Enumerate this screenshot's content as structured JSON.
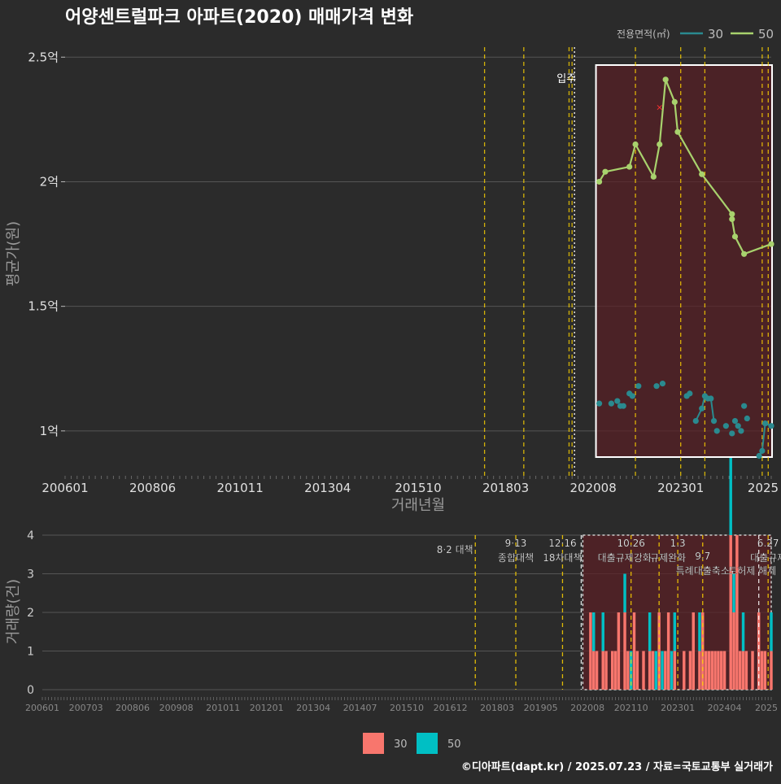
{
  "title": "어양센트럴파크 아파트(2020) 매매가격 변화",
  "footer": "©디아파트(dapt.kr) / 2025.07.23 / 자료=국토교통부 실거래가",
  "colors": {
    "background": "#2b2b2b",
    "s30": "#2a8a8f",
    "s50": "#a8d26d",
    "bar30": "#f8766d",
    "bar50": "#00bfc4",
    "policy": "#ffd400",
    "highlight": "#5a2025"
  },
  "chart_data": [
    {
      "type": "line",
      "xlabel": "거래년월",
      "ylabel": "평균가(원)",
      "x_ticks": [
        "200601",
        "200806",
        "201011",
        "201304",
        "201510",
        "201803",
        "202008",
        "202301",
        "2025"
      ],
      "y_ticks": [
        "1억",
        "1.5억",
        "2억",
        "2.5억"
      ],
      "y_tick_values": [
        100000000,
        150000000,
        200000000,
        250000000
      ],
      "ylim": [
        82000000,
        254000000
      ],
      "xlim": [
        "2006-01",
        "2025-07"
      ],
      "legend_title": "전용면적(㎡)",
      "legend_position": "top-right",
      "annotation": "입주",
      "highlight_range": [
        "2020-10",
        "2025-07"
      ],
      "policy_lines": [
        "2017-08",
        "2018-09",
        "2019-12",
        "2020-01",
        "2021-10",
        "2023-01",
        "2023-09",
        "2025-04",
        "2025-06"
      ],
      "series": [
        {
          "name": "30",
          "points": [
            [
              "2020-10",
              111000000
            ],
            [
              "2021-02",
              111000000
            ],
            [
              "2021-04",
              112000000
            ],
            [
              "2021-05",
              110000000
            ],
            [
              "2021-06",
              110000000
            ],
            [
              "2021-08",
              115000000
            ],
            [
              "2021-09",
              114000000
            ],
            [
              "2021-11",
              118000000
            ],
            [
              "2022-05",
              118000000
            ],
            [
              "2022-07",
              119000000
            ],
            [
              "2023-03",
              114000000
            ],
            [
              "2023-04",
              115000000
            ],
            [
              "2023-06",
              104000000
            ],
            [
              "2023-08",
              109000000
            ],
            [
              "2023-09",
              114000000
            ],
            [
              "2023-10",
              113000000
            ],
            [
              "2023-11",
              113000000
            ],
            [
              "2023-12",
              104000000
            ],
            [
              "2024-01",
              100000000
            ],
            [
              "2024-04",
              102000000
            ],
            [
              "2024-06",
              99000000
            ],
            [
              "2024-07",
              104000000
            ],
            [
              "2024-08",
              102000000
            ],
            [
              "2024-09",
              100000000
            ],
            [
              "2024-10",
              110000000
            ],
            [
              "2024-11",
              105000000
            ],
            [
              "2025-03",
              90000000
            ],
            [
              "2025-04",
              92000000
            ],
            [
              "2025-05",
              103000000
            ],
            [
              "2025-07",
              102000000
            ]
          ]
        },
        {
          "name": "50",
          "points": [
            [
              "2020-10",
              200000000
            ],
            [
              "2020-12",
              204000000
            ],
            [
              "2021-08",
              206000000
            ],
            [
              "2021-10",
              215000000
            ],
            [
              "2022-04",
              202000000
            ],
            [
              "2022-06",
              215000000
            ],
            [
              "2022-08",
              241000000
            ],
            [
              "2022-11",
              232000000
            ],
            [
              "2022-12",
              220000000
            ],
            [
              "2023-08",
              203000000
            ],
            [
              "2024-06",
              187000000
            ],
            [
              "2024-06",
              185000000
            ],
            [
              "2024-07",
              178000000
            ],
            [
              "2024-10",
              171000000
            ],
            [
              "2025-07",
              175000000
            ]
          ],
          "outlier": [
            "2022-06",
            230000000
          ]
        }
      ]
    },
    {
      "type": "bar",
      "xlabel": "",
      "ylabel": "거래량(건)",
      "x_ticks": [
        "200601",
        "200703",
        "200806",
        "200908",
        "201011",
        "201201",
        "201304",
        "201407",
        "201510",
        "201612",
        "201803",
        "201905",
        "202008",
        "202110",
        "202301",
        "202404",
        "2025"
      ],
      "y_ticks": [
        "0",
        "1",
        "2",
        "3",
        "4"
      ],
      "ylim": [
        0,
        4
      ],
      "legend_position": "bottom",
      "policies": [
        {
          "date": "2017-08",
          "label": "8·2 대책"
        },
        {
          "date": "2018-09",
          "label": "9·13\n종합대책"
        },
        {
          "date": "2019-12",
          "label": "12·16\n18차대책"
        },
        {
          "date": "2020-06",
          "label": ""
        },
        {
          "date": "2021-10",
          "label": "10.26\n대출규제강화"
        },
        {
          "date": "2022-07",
          "label": ""
        },
        {
          "date": "2023-01",
          "label": "1.3\n규제완화"
        },
        {
          "date": "2023-09",
          "label": "9.7\n특례대출축소"
        },
        {
          "date": "2025-03",
          "label": "토허제 해제"
        },
        {
          "date": "2025-06",
          "label": "6.27\n대출규제"
        }
      ],
      "series": [
        {
          "name": "30",
          "points": [
            [
              "2020-09",
              2
            ],
            [
              "2020-10",
              1
            ],
            [
              "2020-11",
              1
            ],
            [
              "2021-01",
              1
            ],
            [
              "2021-02",
              1
            ],
            [
              "2021-04",
              1
            ],
            [
              "2021-05",
              1
            ],
            [
              "2021-06",
              2
            ],
            [
              "2021-08",
              2
            ],
            [
              "2021-09",
              1
            ],
            [
              "2021-11",
              2
            ],
            [
              "2021-12",
              1
            ],
            [
              "2022-02",
              1
            ],
            [
              "2022-04",
              1
            ],
            [
              "2022-05",
              1
            ],
            [
              "2022-07",
              2
            ],
            [
              "2022-09",
              1
            ],
            [
              "2022-10",
              2
            ],
            [
              "2022-12",
              1
            ],
            [
              "2023-03",
              1
            ],
            [
              "2023-05",
              1
            ],
            [
              "2023-06",
              2
            ],
            [
              "2023-08",
              1
            ],
            [
              "2023-09",
              2
            ],
            [
              "2023-10",
              1
            ],
            [
              "2023-11",
              1
            ],
            [
              "2023-12",
              1
            ],
            [
              "2024-01",
              1
            ],
            [
              "2024-02",
              1
            ],
            [
              "2024-03",
              1
            ],
            [
              "2024-04",
              1
            ],
            [
              "2024-06",
              4
            ],
            [
              "2024-07",
              2
            ],
            [
              "2024-08",
              4
            ],
            [
              "2024-09",
              1
            ],
            [
              "2024-10",
              1
            ],
            [
              "2024-11",
              1
            ],
            [
              "2025-01",
              1
            ],
            [
              "2025-03",
              2
            ],
            [
              "2025-04",
              1
            ],
            [
              "2025-05",
              1
            ],
            [
              "2025-07",
              1
            ]
          ]
        },
        {
          "name": "50",
          "points": [
            [
              "2020-10",
              1
            ],
            [
              "2021-01",
              1
            ],
            [
              "2021-08",
              1
            ],
            [
              "2021-10",
              1
            ],
            [
              "2022-04",
              1
            ],
            [
              "2022-06",
              1
            ],
            [
              "2022-08",
              1
            ],
            [
              "2022-11",
              1
            ],
            [
              "2022-12",
              1
            ],
            [
              "2023-08",
              1
            ],
            [
              "2024-06",
              2
            ],
            [
              "2024-07",
              1
            ],
            [
              "2024-10",
              1
            ],
            [
              "2025-07",
              1
            ]
          ]
        }
      ]
    }
  ]
}
